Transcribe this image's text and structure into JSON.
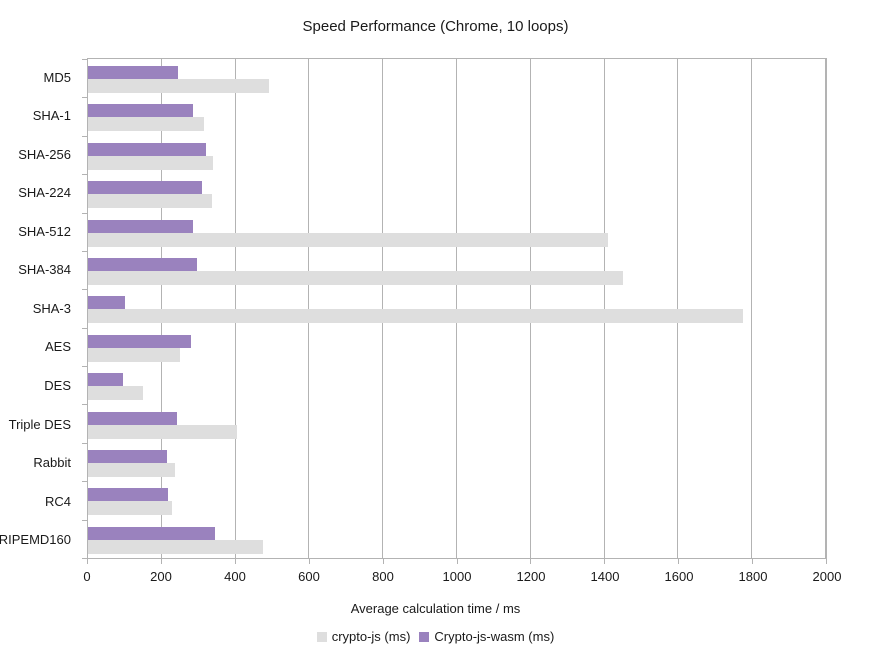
{
  "chart_data": {
    "type": "bar",
    "orientation": "horizontal",
    "title": "Speed Performance (Chrome, 10 loops)",
    "xlabel": "Average calculation time / ms",
    "categories": [
      "MD5",
      "SHA-1",
      "SHA-256",
      "SHA-224",
      "SHA-512",
      "SHA-384",
      "SHA-3",
      "AES",
      "DES",
      "Triple DES",
      "Rabbit",
      "RC4",
      "RIPEMD160"
    ],
    "series": [
      {
        "name": "crypto-js (ms)",
        "color": "#dedede",
        "values": [
          490,
          315,
          340,
          335,
          1410,
          1450,
          1775,
          250,
          150,
          405,
          235,
          228,
          473
        ]
      },
      {
        "name": "Crypto-js-wasm (ms)",
        "color": "#9a82be",
        "values": [
          245,
          285,
          320,
          310,
          285,
          295,
          100,
          278,
          95,
          240,
          213,
          218,
          345
        ]
      }
    ],
    "xlim": [
      0,
      2000
    ],
    "xticks": [
      0,
      200,
      400,
      600,
      800,
      1000,
      1200,
      1400,
      1600,
      1800,
      2000
    ],
    "grid": "vertical",
    "legend_position": "bottom",
    "colors": {
      "grid": "#b3b3b3",
      "text": "#1a1a1a",
      "background": "#ffffff"
    }
  }
}
